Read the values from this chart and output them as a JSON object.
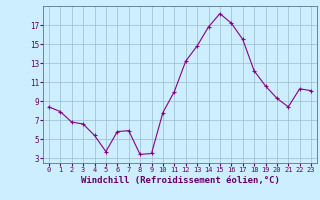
{
  "x": [
    0,
    1,
    2,
    3,
    4,
    5,
    6,
    7,
    8,
    9,
    10,
    11,
    12,
    13,
    14,
    15,
    16,
    17,
    18,
    19,
    20,
    21,
    22,
    23
  ],
  "y": [
    8.4,
    7.9,
    6.8,
    6.6,
    5.4,
    3.7,
    5.8,
    5.9,
    3.4,
    3.5,
    7.8,
    10.0,
    13.2,
    14.8,
    16.8,
    18.2,
    17.2,
    15.5,
    12.2,
    10.6,
    9.3,
    8.4,
    10.3,
    10.1
  ],
  "line_color": "#880088",
  "marker": "+",
  "marker_size": 3.5,
  "marker_lw": 0.8,
  "line_width": 0.8,
  "bg_color": "#cceeff",
  "grid_color": "#99bbcc",
  "xlabel": "Windchill (Refroidissement éolien,°C)",
  "xlabel_fontsize": 6.5,
  "xtick_fontsize": 5.0,
  "ytick_fontsize": 5.5,
  "xtick_labels": [
    "0",
    "1",
    "2",
    "3",
    "4",
    "5",
    "6",
    "7",
    "8",
    "9",
    "10",
    "11",
    "12",
    "13",
    "14",
    "15",
    "16",
    "17",
    "18",
    "19",
    "20",
    "21",
    "22",
    "23"
  ],
  "yticks": [
    3,
    5,
    7,
    9,
    11,
    13,
    15,
    17
  ],
  "ylim": [
    2.5,
    19.0
  ],
  "xlim": [
    -0.5,
    23.5
  ],
  "tick_color": "#660066",
  "label_color": "#660066"
}
